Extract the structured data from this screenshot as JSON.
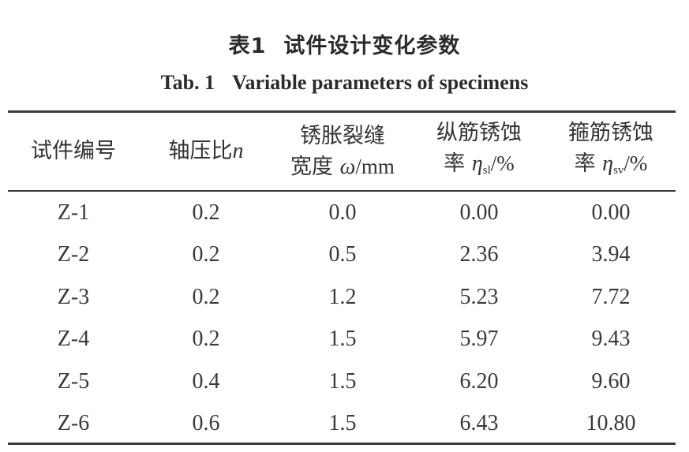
{
  "caption": {
    "cn_label": "表1",
    "cn_title": "试件设计变化参数",
    "en_label": "Tab. 1",
    "en_title": "Variable parameters of specimens"
  },
  "table": {
    "headers": {
      "specimen": "试件编号",
      "axial": {
        "text": "轴压比",
        "symbol": "n"
      },
      "crack": {
        "line1": "锈胀裂缝",
        "line2_text": "宽度",
        "symbol": "ω",
        "unit": "/mm"
      },
      "long_corr": {
        "line1": "纵筋锈蚀",
        "line2_text": "率",
        "symbol": "η",
        "sub": "sl",
        "unit": "/%"
      },
      "stir_corr": {
        "line1": "箍筋锈蚀",
        "line2_text": "率",
        "symbol": "η",
        "sub": "sv",
        "unit": "/%"
      }
    },
    "rows": [
      {
        "id": "Z-1",
        "n": "0.2",
        "crack": "0.0",
        "sl": "0.00",
        "sv": "0.00"
      },
      {
        "id": "Z-2",
        "n": "0.2",
        "crack": "0.5",
        "sl": "2.36",
        "sv": "3.94"
      },
      {
        "id": "Z-3",
        "n": "0.2",
        "crack": "1.2",
        "sl": "5.23",
        "sv": "7.72"
      },
      {
        "id": "Z-4",
        "n": "0.2",
        "crack": "1.5",
        "sl": "5.97",
        "sv": "9.43"
      },
      {
        "id": "Z-5",
        "n": "0.4",
        "crack": "1.5",
        "sl": "6.20",
        "sv": "9.60"
      },
      {
        "id": "Z-6",
        "n": "0.6",
        "crack": "1.5",
        "sl": "6.43",
        "sv": "10.80"
      }
    ]
  }
}
